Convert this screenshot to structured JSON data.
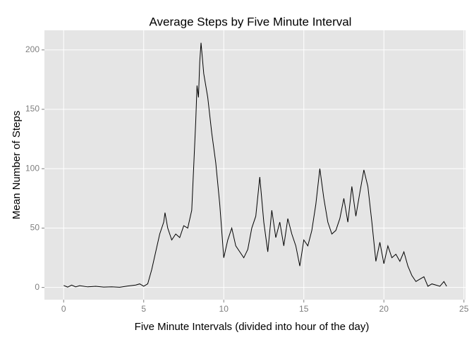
{
  "chart_data": {
    "type": "line",
    "title": "Average Steps by Five Minute Interval",
    "x_label": "Five Minute Intervals (divided into hour of the day)",
    "y_label": "Mean Number of Steps",
    "x": [
      0,
      0.25,
      0.5,
      0.75,
      1,
      1.5,
      2,
      2.5,
      3,
      3.5,
      4,
      4.5,
      4.75,
      5,
      5.25,
      5.5,
      5.75,
      6,
      6.25,
      6.33,
      6.5,
      6.75,
      7,
      7.25,
      7.5,
      7.75,
      8,
      8.25,
      8.33,
      8.42,
      8.5,
      8.58,
      8.75,
      9,
      9.25,
      9.5,
      9.75,
      10,
      10.25,
      10.5,
      10.75,
      11,
      11.25,
      11.5,
      11.75,
      12,
      12.25,
      12.5,
      12.75,
      13,
      13.25,
      13.5,
      13.75,
      14,
      14.25,
      14.5,
      14.75,
      15,
      15.25,
      15.5,
      15.75,
      16,
      16.25,
      16.5,
      16.75,
      17,
      17.25,
      17.5,
      17.75,
      18,
      18.25,
      18.5,
      18.75,
      19,
      19.25,
      19.5,
      19.75,
      20,
      20.25,
      20.5,
      20.75,
      21,
      21.25,
      21.5,
      21.75,
      22,
      22.25,
      22.5,
      22.75,
      23,
      23.25,
      23.5,
      23.75,
      23.92
    ],
    "series": [
      {
        "name": "Mean Number of Steps",
        "color": "#000000",
        "values": [
          1.7,
          0.3,
          2,
          0.5,
          1.5,
          0.5,
          1,
          0.3,
          0.5,
          0.2,
          1.2,
          2,
          3,
          1,
          3,
          15,
          30,
          45,
          55,
          63,
          50,
          40,
          45,
          42,
          52,
          50,
          65,
          140,
          170,
          160,
          190,
          206,
          180,
          160,
          130,
          105,
          70,
          25,
          40,
          50,
          35,
          30,
          25,
          32,
          50,
          60,
          93,
          55,
          30,
          65,
          42,
          55,
          35,
          58,
          45,
          35,
          18,
          40,
          35,
          48,
          70,
          100,
          75,
          55,
          45,
          48,
          58,
          75,
          55,
          85,
          60,
          80,
          99,
          85,
          55,
          22,
          38,
          20,
          35,
          25,
          28,
          22,
          30,
          18,
          10,
          5,
          7,
          9,
          1,
          3,
          2,
          1,
          5,
          1
        ]
      }
    ],
    "xlim": [
      -1.2,
      25.1
    ],
    "xticks": [
      0,
      5,
      10,
      15,
      20,
      25
    ],
    "ylim": [
      -10.3,
      216.5
    ],
    "yticks": [
      0,
      50,
      100,
      150,
      200
    ],
    "grid": true
  }
}
